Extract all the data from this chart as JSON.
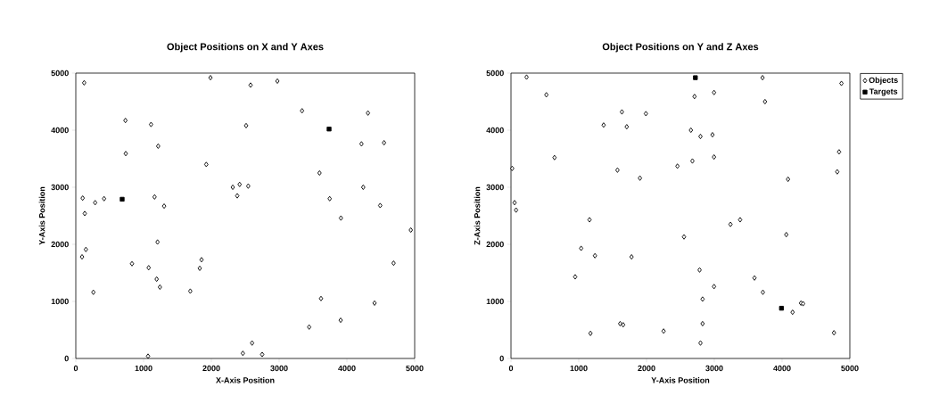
{
  "chart_data": [
    {
      "type": "scatter",
      "title": "Object Positions on X and Y Axes",
      "xlabel": "X-Axis Position",
      "ylabel": "Y-Axis Position",
      "xlim": [
        0,
        5000
      ],
      "ylim": [
        0,
        5000
      ],
      "xticks": [
        0,
        1000,
        2000,
        3000,
        4000,
        5000
      ],
      "yticks": [
        0,
        1000,
        2000,
        3000,
        4000,
        5000
      ],
      "grid": false,
      "legend": false,
      "series": [
        {
          "color": "#000000",
          "marker": "diamond",
          "x": [
            123,
            732,
            1110,
            1987,
            2579,
            2513,
            1215,
            737,
            1925,
            101,
            285,
            417,
            132,
            1162,
            1303,
            2316,
            2417,
            2382,
            2544,
            1206,
            149,
            92,
            829,
            1075,
            1193,
            1241,
            259,
            1689,
            1855,
            1829,
            1066,
            2465,
            2601,
            2750,
            2974,
            3338,
            4311,
            4215,
            4548,
            3596,
            4241,
            3746,
            4491,
            3912,
            4943,
            4689,
            3618,
            4408,
            3908,
            3443
          ],
          "values": [
            4830,
            4170,
            4100,
            4920,
            4790,
            4080,
            3720,
            3590,
            3400,
            2810,
            2730,
            2800,
            2540,
            2830,
            2670,
            3000,
            3050,
            2850,
            3020,
            2040,
            1910,
            1780,
            1660,
            1590,
            1390,
            1250,
            1160,
            1180,
            1730,
            1580,
            40,
            90,
            270,
            70,
            4860,
            4340,
            4300,
            3760,
            3780,
            3250,
            3000,
            2800,
            2680,
            2460,
            2250,
            1670,
            1050,
            970,
            670,
            550
          ]
        },
        {
          "color": "#000000",
          "marker": "square",
          "x": [
            684,
            3737
          ],
          "values": [
            2790,
            4020
          ]
        }
      ]
    },
    {
      "type": "scatter",
      "title": "Object Positions on Y and Z Axes",
      "xlabel": "Y-Axis Position",
      "ylabel": "Z-Axis Position",
      "xlim": [
        0,
        5000
      ],
      "ylim": [
        0,
        5000
      ],
      "xticks": [
        0,
        1000,
        2000,
        3000,
        4000,
        5000
      ],
      "yticks": [
        0,
        1000,
        2000,
        3000,
        4000,
        5000
      ],
      "grid": false,
      "legend": "right",
      "series": [
        {
          "name": "Objects",
          "color": "#000000",
          "marker": "diamond",
          "x": [
            230,
            522,
            642,
            18,
            53,
            75,
            1367,
            1637,
            1708,
            1991,
            1571,
            1903,
            1159,
            1035,
            1239,
            1779,
            947,
            1611,
            1655,
            1173,
            2252,
            2456,
            2553,
            2655,
            2677,
            2708,
            2996,
            2796,
            2973,
            2996,
            3712,
            3748,
            4876,
            4841,
            4814,
            4088,
            3239,
            3381,
            4062,
            2783,
            2996,
            2827,
            3593,
            3717,
            2827,
            2796,
            4155,
            4279,
            4310,
            4766
          ],
          "values": [
            4930,
            4620,
            3520,
            3330,
            2730,
            2600,
            4090,
            4320,
            4060,
            4290,
            3300,
            3160,
            2430,
            1930,
            1800,
            1780,
            1430,
            610,
            590,
            440,
            480,
            3370,
            2130,
            4000,
            3460,
            4590,
            4660,
            3890,
            3920,
            3530,
            4920,
            4500,
            4820,
            3620,
            3270,
            3140,
            2350,
            2430,
            2170,
            1550,
            1260,
            1040,
            1410,
            1160,
            610,
            270,
            810,
            970,
            960,
            450
          ]
        },
        {
          "name": "Targets",
          "color": "#000000",
          "marker": "square",
          "x": [
            2721,
            3991
          ],
          "values": [
            4920,
            880
          ]
        }
      ]
    }
  ]
}
